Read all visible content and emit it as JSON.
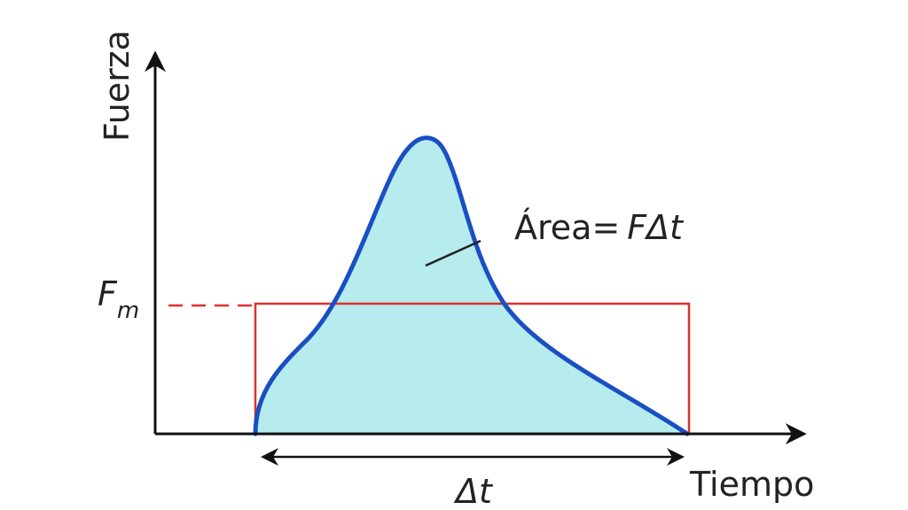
{
  "axes": {
    "y_label": "Fuerza",
    "x_label": "Tiempo"
  },
  "labels": {
    "fm": {
      "main": "F",
      "sub": "m"
    },
    "area": {
      "text": "Área=",
      "formula": "FΔt"
    },
    "delta_t": "Δt"
  }
}
